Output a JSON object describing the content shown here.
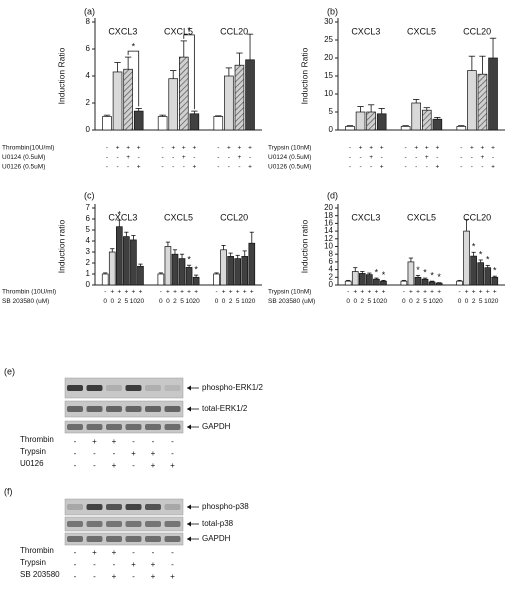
{
  "chart_data": [
    {
      "type": "bar",
      "panel": "(a)",
      "y_label": "Induction Ratio",
      "categories": [
        "CXCL3",
        "CXCL5",
        "CCL20"
      ],
      "ylim": [
        0,
        8
      ],
      "yticks": [
        0,
        2,
        4,
        6,
        8
      ],
      "bracket": true,
      "series": [
        {
          "color": "#ffffff",
          "values": [
            1.0,
            1.0,
            1.0
          ],
          "errors": [
            0.1,
            0.1,
            0.05
          ]
        },
        {
          "color": "#d9d9d9",
          "values": [
            4.3,
            3.8,
            4.0
          ],
          "errors": [
            0.7,
            0.6,
            0.6
          ]
        },
        {
          "color": "#bfbfbf",
          "hatch": true,
          "values": [
            4.5,
            5.4,
            4.8
          ],
          "errors": [
            0.9,
            1.2,
            0.9
          ]
        },
        {
          "color": "#404040",
          "values": [
            1.4,
            1.2,
            5.2
          ],
          "errors": [
            0.2,
            0.2,
            1.9
          ],
          "significance": [
            "*",
            "*",
            null
          ]
        }
      ],
      "conditions": [
        {
          "label": "Thrombin(10U/ml)",
          "signs": [
            "-",
            "+",
            "+",
            "+"
          ]
        },
        {
          "label": "U0124 (0.5uM)",
          "signs": [
            "-",
            "-",
            "+",
            "-"
          ]
        },
        {
          "label": "U0126 (0.5uM)",
          "signs": [
            "-",
            "-",
            "-",
            "+"
          ]
        }
      ]
    },
    {
      "type": "bar",
      "panel": "(b)",
      "y_label": "Induction Ratio",
      "categories": [
        "CXCL3",
        "CXCL5",
        "CCL20"
      ],
      "ylim": [
        0,
        30
      ],
      "yticks": [
        0,
        5,
        10,
        15,
        20,
        25,
        30
      ],
      "series": [
        {
          "color": "#ffffff",
          "values": [
            1,
            1,
            1
          ],
          "errors": [
            0.2,
            0.2,
            0.2
          ]
        },
        {
          "color": "#d9d9d9",
          "values": [
            5,
            7.5,
            16.5
          ],
          "errors": [
            1.5,
            1,
            4
          ]
        },
        {
          "color": "#bfbfbf",
          "hatch": true,
          "values": [
            5,
            5.5,
            15.5
          ],
          "errors": [
            2,
            0.7,
            5
          ]
        },
        {
          "color": "#404040",
          "values": [
            4.5,
            3,
            20
          ],
          "errors": [
            1.5,
            0.5,
            5.5
          ]
        }
      ],
      "conditions": [
        {
          "label": "Trypsin (10nM)",
          "signs": [
            "-",
            "+",
            "+",
            "+"
          ]
        },
        {
          "label": "U0124 (0.5uM)",
          "signs": [
            "-",
            "-",
            "+",
            "-"
          ]
        },
        {
          "label": "U0126 (0.5uM)",
          "signs": [
            "-",
            "-",
            "-",
            "+"
          ]
        }
      ]
    },
    {
      "type": "bar",
      "panel": "(c)",
      "y_label": "Induction  ratio",
      "categories": [
        "CXCL3",
        "CXCL5",
        "CCL20"
      ],
      "ylim": [
        0,
        7
      ],
      "yticks": [
        0,
        1,
        2,
        3,
        4,
        5,
        6,
        7
      ],
      "series": [
        {
          "color": "#ffffff",
          "values": [
            1,
            1,
            1
          ],
          "errors": [
            0.1,
            0.1,
            0.1
          ]
        },
        {
          "color": "#d9d9d9",
          "values": [
            3,
            3.5,
            3.2
          ],
          "errors": [
            0.3,
            0.4,
            0.4
          ]
        },
        {
          "color": "#404040",
          "values": [
            5.3,
            2.8,
            2.6
          ],
          "errors": [
            0.6,
            0.4,
            0.3
          ],
          "significance": [
            "*",
            null,
            null
          ]
        },
        {
          "color": "#404040",
          "values": [
            4.4,
            2.4,
            2.4
          ],
          "errors": [
            0.4,
            0.4,
            0.3
          ]
        },
        {
          "color": "#404040",
          "values": [
            4.1,
            1.6,
            2.6
          ],
          "errors": [
            0.4,
            0.2,
            0.5
          ],
          "significance": [
            null,
            "*",
            null
          ]
        },
        {
          "color": "#404040",
          "values": [
            1.7,
            0.7,
            3.8
          ],
          "errors": [
            0.2,
            0.2,
            1.0
          ],
          "significance": [
            null,
            "*",
            null
          ]
        }
      ],
      "conditions": [
        {
          "label": "Thrombin (10U/ml)",
          "signs": [
            "-",
            "+",
            "+",
            "+",
            "+",
            "+"
          ]
        },
        {
          "label": "SB 203580 (uM)",
          "signs": [
            "0",
            "0",
            "2",
            "5",
            "10",
            "20"
          ]
        }
      ]
    },
    {
      "type": "bar",
      "panel": "(d)",
      "y_label": "Induction  ratio",
      "categories": [
        "CXCL3",
        "CXCL5",
        "CCL20"
      ],
      "ylim": [
        0,
        20
      ],
      "yticks": [
        0,
        2,
        4,
        6,
        8,
        10,
        12,
        14,
        16,
        18,
        20
      ],
      "series": [
        {
          "color": "#ffffff",
          "values": [
            1,
            1,
            1
          ],
          "errors": [
            0.2,
            0.2,
            0.2
          ]
        },
        {
          "color": "#d9d9d9",
          "values": [
            3.5,
            6,
            14
          ],
          "errors": [
            1,
            1,
            3
          ]
        },
        {
          "color": "#404040",
          "values": [
            3,
            2,
            7.5
          ],
          "errors": [
            0.5,
            0.5,
            1
          ],
          "significance": [
            null,
            "*",
            "*"
          ]
        },
        {
          "color": "#404040",
          "values": [
            2.7,
            1.5,
            5.8
          ],
          "errors": [
            0.4,
            0.3,
            0.7
          ],
          "significance": [
            null,
            "*",
            "*"
          ]
        },
        {
          "color": "#404040",
          "values": [
            1.5,
            0.8,
            4.5
          ],
          "errors": [
            0.3,
            0.2,
            0.6
          ],
          "significance": [
            "*",
            "*",
            "*"
          ]
        },
        {
          "color": "#404040",
          "values": [
            1,
            0.5,
            2
          ],
          "errors": [
            0.2,
            0.1,
            0.3
          ],
          "significance": [
            "*",
            "*",
            "*"
          ]
        }
      ],
      "conditions": [
        {
          "label": "Trypsin (10nM)",
          "signs": [
            "-",
            "+",
            "+",
            "+",
            "+",
            "+"
          ]
        },
        {
          "label": "SB 203580 (uM)",
          "signs": [
            "0",
            "0",
            "2",
            "5",
            "10",
            "20"
          ]
        }
      ]
    }
  ],
  "blots": [
    {
      "panel": "(e)",
      "bands": [
        "phospho-ERK1/2",
        "total-ERK1/2",
        "GAPDH"
      ],
      "conditions": [
        {
          "label": "Thrombin",
          "signs": [
            "-",
            "+",
            "+",
            "-",
            "-",
            "-"
          ]
        },
        {
          "label": "Trypsin",
          "signs": [
            "-",
            "-",
            "-",
            "+",
            "+",
            "-"
          ]
        },
        {
          "label": "U0126",
          "signs": [
            "-",
            "-",
            "+",
            "-",
            "+",
            "+"
          ]
        }
      ]
    },
    {
      "panel": "(f)",
      "bands": [
        "phospho-p38",
        "total-p38",
        "GAPDH"
      ],
      "conditions": [
        {
          "label": "Thrombin",
          "signs": [
            "-",
            "+",
            "+",
            "-",
            "-",
            "-"
          ]
        },
        {
          "label": "Trypsin",
          "signs": [
            "-",
            "-",
            "-",
            "+",
            "+",
            "-"
          ]
        },
        {
          "label": "SB 203580",
          "signs": [
            "-",
            "-",
            "+",
            "-",
            "+",
            "+"
          ]
        }
      ]
    }
  ]
}
